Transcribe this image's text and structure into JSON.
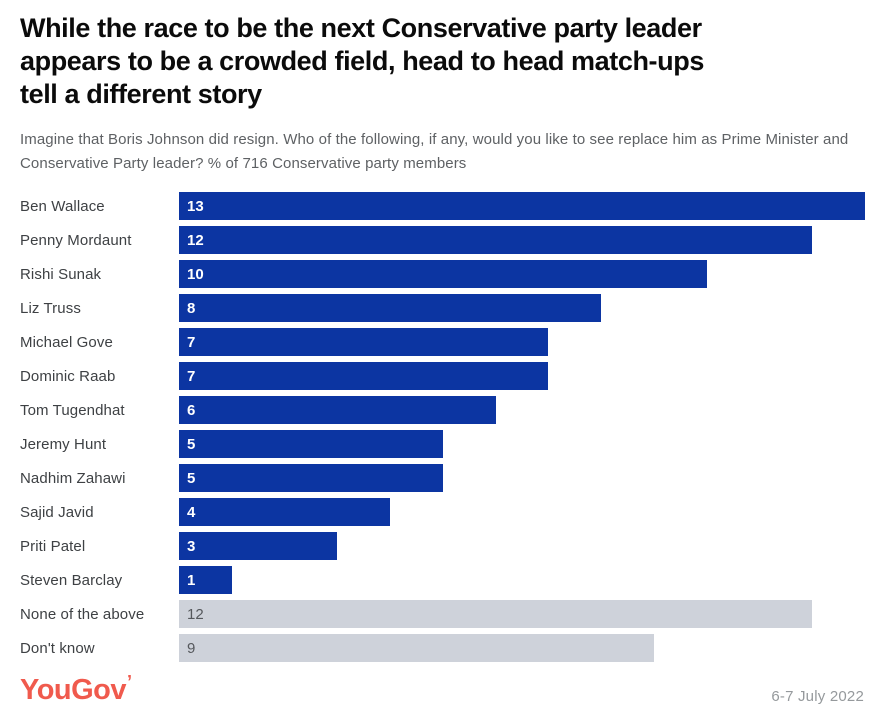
{
  "header": {
    "title_lines": [
      "While the race to be the next Conservative party leader",
      "appears to be a crowded field, head to head match-ups",
      "tell a different story"
    ],
    "subtitle": "Imagine that Boris Johnson did resign. Who of the following, if any, would you like to see replace him as Prime Minister and Conservative Party leader? % of 716 Conservative party members"
  },
  "chart_data": {
    "type": "bar",
    "orientation": "horizontal",
    "title": "While the race to be the next Conservative party leader appears to be a crowded field, head to head match-ups tell a different story",
    "question": "Imagine that Boris Johnson did resign. Who of the following, if any, would you like to see replace him as Prime Minister and Conservative Party leader? % of 716 Conservative party members",
    "unit": "%",
    "sample_size": 716,
    "xlim": [
      0,
      13
    ],
    "grid": false,
    "legend": "none",
    "data_labels": "inside-left",
    "categories": [
      "Ben Wallace",
      "Penny Mordaunt",
      "Rishi Sunak",
      "Liz Truss",
      "Michael Gove",
      "Dominic Raab",
      "Tom Tugendhat",
      "Jeremy Hunt",
      "Nadhim Zahawi",
      "Sajid Javid",
      "Priti Patel",
      "Steven Barclay",
      "None of the above",
      "Don't know"
    ],
    "values": [
      13,
      12,
      10,
      8,
      7,
      7,
      6,
      5,
      5,
      4,
      3,
      1,
      12,
      9
    ],
    "rows": [
      {
        "label": "Ben Wallace",
        "value": 13,
        "muted": false
      },
      {
        "label": "Penny Mordaunt",
        "value": 12,
        "muted": false
      },
      {
        "label": "Rishi Sunak",
        "value": 10,
        "muted": false
      },
      {
        "label": "Liz Truss",
        "value": 8,
        "muted": false
      },
      {
        "label": "Michael Gove",
        "value": 7,
        "muted": false
      },
      {
        "label": "Dominic Raab",
        "value": 7,
        "muted": false
      },
      {
        "label": "Tom Tugendhat",
        "value": 6,
        "muted": false
      },
      {
        "label": "Jeremy Hunt",
        "value": 5,
        "muted": false
      },
      {
        "label": "Nadhim Zahawi",
        "value": 5,
        "muted": false
      },
      {
        "label": "Sajid Javid",
        "value": 4,
        "muted": false
      },
      {
        "label": "Priti Patel",
        "value": 3,
        "muted": false
      },
      {
        "label": "Steven Barclay",
        "value": 1,
        "muted": false
      },
      {
        "label": "None of the above",
        "value": 12,
        "muted": true
      },
      {
        "label": "Don't know",
        "value": 9,
        "muted": true
      }
    ]
  },
  "footer": {
    "brand": "YouGov",
    "brand_tick": "’",
    "date": "6-7 July 2022"
  },
  "colors": {
    "bar_blue": "#0c35a2",
    "bar_gray": "#ced2da",
    "title_text": "#0b0b0b",
    "subtitle_text": "#5e6164",
    "category_text": "#3e4144",
    "value_text_on_blue": "#ffffff",
    "value_text_on_gray": "#55585c",
    "brand_red": "#f05a4d",
    "date_text": "#95999c",
    "background": "#ffffff"
  }
}
